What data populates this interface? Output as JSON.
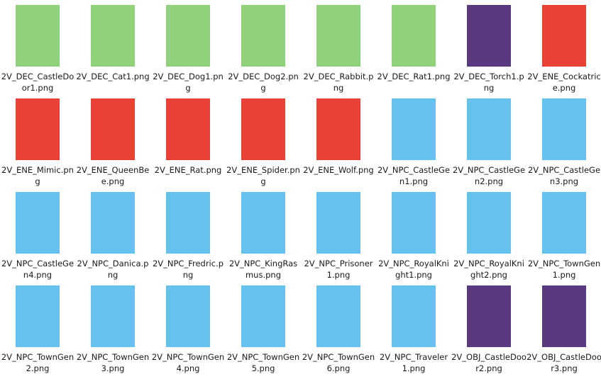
{
  "colors": {
    "green": "#8fd27b",
    "purple": "#593a80",
    "red": "#ea4136",
    "blue": "#67c1ef"
  },
  "files": [
    {
      "name": "2V_DEC_CastleDoor1.png",
      "color": "green"
    },
    {
      "name": "2V_DEC_Cat1.png",
      "color": "green"
    },
    {
      "name": "2V_DEC_Dog1.png",
      "color": "green"
    },
    {
      "name": "2V_DEC_Dog2.png",
      "color": "green"
    },
    {
      "name": "2V_DEC_Rabbit.png",
      "color": "green"
    },
    {
      "name": "2V_DEC_Rat1.png",
      "color": "green"
    },
    {
      "name": "2V_DEC_Torch1.png",
      "color": "purple"
    },
    {
      "name": "2V_ENE_Cockatrice.png",
      "color": "red"
    },
    {
      "name": "2V_ENE_Mimic.png",
      "color": "red"
    },
    {
      "name": "2V_ENE_QueenBee.png",
      "color": "red"
    },
    {
      "name": "2V_ENE_Rat.png",
      "color": "red"
    },
    {
      "name": "2V_ENE_Spider.png",
      "color": "red"
    },
    {
      "name": "2V_ENE_Wolf.png",
      "color": "red"
    },
    {
      "name": "2V_NPC_CastleGen1.png",
      "color": "blue"
    },
    {
      "name": "2V_NPC_CastleGen2.png",
      "color": "blue"
    },
    {
      "name": "2V_NPC_CastleGen3.png",
      "color": "blue"
    },
    {
      "name": "2V_NPC_CastleGen4.png",
      "color": "blue"
    },
    {
      "name": "2V_NPC_Danica.png",
      "color": "blue"
    },
    {
      "name": "2V_NPC_Fredric.png",
      "color": "blue"
    },
    {
      "name": "2V_NPC_KingRasmus.png",
      "color": "blue"
    },
    {
      "name": "2V_NPC_Prisoner1.png",
      "color": "blue"
    },
    {
      "name": "2V_NPC_RoyalKnight1.png",
      "color": "blue"
    },
    {
      "name": "2V_NPC_RoyalKnight2.png",
      "color": "blue"
    },
    {
      "name": "2V_NPC_TownGen1.png",
      "color": "blue"
    },
    {
      "name": "2V_NPC_TownGen2.png",
      "color": "blue"
    },
    {
      "name": "2V_NPC_TownGen3.png",
      "color": "blue"
    },
    {
      "name": "2V_NPC_TownGen4.png",
      "color": "blue"
    },
    {
      "name": "2V_NPC_TownGen5.png",
      "color": "blue"
    },
    {
      "name": "2V_NPC_TownGen6.png",
      "color": "blue"
    },
    {
      "name": "2V_NPC_Traveler1.png",
      "color": "blue"
    },
    {
      "name": "2V_OBJ_CastleDoor2.png",
      "color": "purple"
    },
    {
      "name": "2V_OBJ_CastleDoor3.png",
      "color": "purple"
    }
  ]
}
